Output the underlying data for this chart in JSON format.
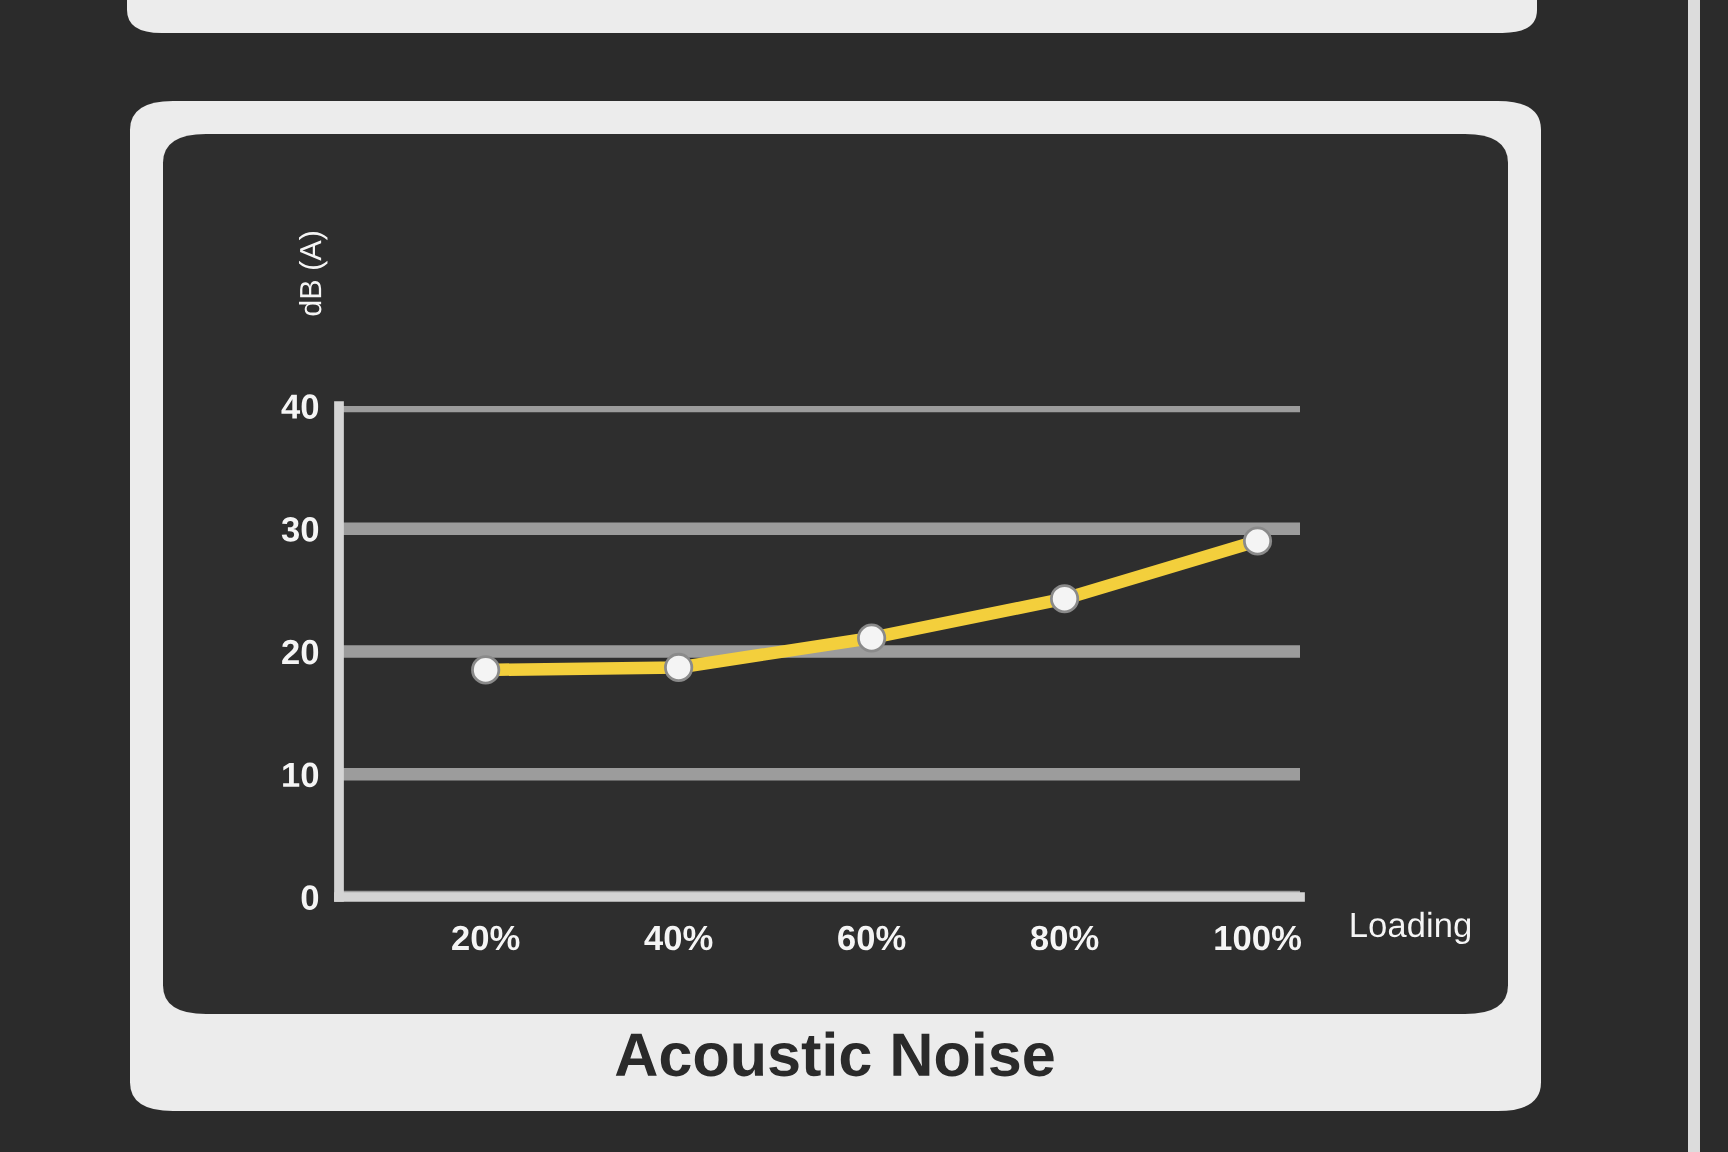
{
  "chart_data": {
    "type": "line",
    "title": "Acoustic Noise",
    "xlabel": "Loading",
    "ylabel": "dB (A)",
    "categories": [
      "20%",
      "40%",
      "60%",
      "80%",
      "100%"
    ],
    "series": [
      {
        "color": "#f3cf3c",
        "values": [
          18.5,
          18.7,
          21.1,
          24.3,
          29.0
        ]
      }
    ],
    "ylim": [
      0,
      40
    ],
    "yticks": [
      0,
      10,
      20,
      30,
      40
    ],
    "grid": "y",
    "marker": "circle",
    "line_style": "solid"
  }
}
